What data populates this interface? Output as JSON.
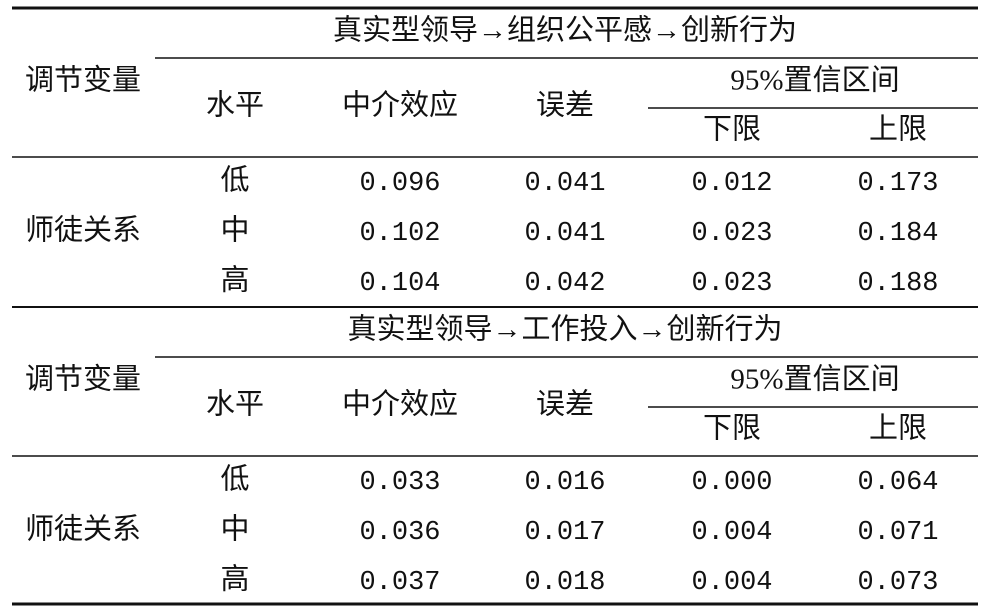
{
  "panels": [
    {
      "title": "真实型领导→组织公平感→创新行为",
      "moderator_header": "调节变量",
      "headers": {
        "level": "水平",
        "effect": "中介效应",
        "error": "误差",
        "ci": "95%置信区间",
        "lower": "下限",
        "upper": "上限"
      },
      "moderator": "师徒关系",
      "rows": [
        [
          "低",
          "0.096",
          "0.041",
          "0.012",
          "0.173"
        ],
        [
          "中",
          "0.102",
          "0.041",
          "0.023",
          "0.184"
        ],
        [
          "高",
          "0.104",
          "0.042",
          "0.023",
          "0.188"
        ]
      ]
    },
    {
      "title": "真实型领导→工作投入→创新行为",
      "moderator_header": "调节变量",
      "headers": {
        "level": "水平",
        "effect": "中介效应",
        "error": "误差",
        "ci": "95%置信区间",
        "lower": "下限",
        "upper": "上限"
      },
      "moderator": "师徒关系",
      "rows": [
        [
          "低",
          "0.033",
          "0.016",
          "0.000",
          "0.064"
        ],
        [
          "中",
          "0.036",
          "0.017",
          "0.004",
          "0.071"
        ],
        [
          "高",
          "0.037",
          "0.018",
          "0.004",
          "0.073"
        ]
      ]
    }
  ]
}
